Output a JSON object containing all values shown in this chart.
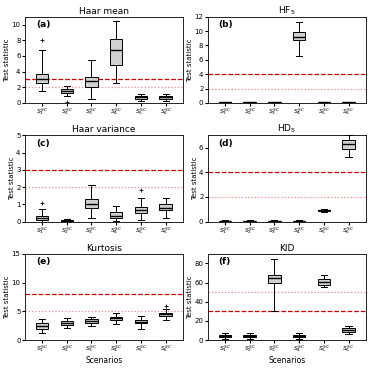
{
  "panels": [
    {
      "label": "(a)",
      "title": "Haar mean",
      "ylabel": "Test statistic",
      "xlabel": "",
      "ylim": [
        0,
        11
      ],
      "yticks": [
        0,
        2,
        4,
        6,
        8,
        10
      ],
      "hline1": 3.0,
      "hline2": 2.0,
      "boxes": [
        {
          "med": 3.1,
          "q1": 2.5,
          "q3": 3.7,
          "whislo": 1.5,
          "whishi": 6.8,
          "fliers_low": [],
          "fliers_high": [
            8.0
          ]
        },
        {
          "med": 1.5,
          "q1": 1.3,
          "q3": 1.8,
          "whislo": 0.9,
          "whishi": 2.2,
          "fliers_low": [
            0.1
          ],
          "fliers_high": []
        },
        {
          "med": 2.8,
          "q1": 2.0,
          "q3": 3.3,
          "whislo": 0.5,
          "whishi": 5.5,
          "fliers_low": [],
          "fliers_high": []
        },
        {
          "med": 6.8,
          "q1": 4.8,
          "q3": 8.2,
          "whislo": 2.5,
          "whishi": 10.5,
          "fliers_low": [],
          "fliers_high": []
        },
        {
          "med": 0.7,
          "q1": 0.5,
          "q3": 0.9,
          "whislo": 0.2,
          "whishi": 1.1,
          "fliers_low": [],
          "fliers_high": []
        },
        {
          "med": 0.7,
          "q1": 0.5,
          "q3": 0.9,
          "whislo": 0.2,
          "whishi": 1.2,
          "fliers_low": [],
          "fliers_high": []
        }
      ]
    },
    {
      "label": "(b)",
      "title": "HF$_5$",
      "ylabel": "Test statistic",
      "xlabel": "",
      "ylim": [
        0,
        12
      ],
      "yticks": [
        0,
        2,
        4,
        6,
        8,
        10,
        12
      ],
      "hline1": 4.0,
      "hline2": 2.0,
      "boxes": [
        {
          "med": 0.08,
          "q1": 0.04,
          "q3": 0.12,
          "whislo": 0.0,
          "whishi": 0.2,
          "fliers_low": [],
          "fliers_high": []
        },
        {
          "med": 0.08,
          "q1": 0.04,
          "q3": 0.12,
          "whislo": 0.0,
          "whishi": 0.2,
          "fliers_low": [],
          "fliers_high": []
        },
        {
          "med": 0.08,
          "q1": 0.04,
          "q3": 0.12,
          "whislo": 0.0,
          "whishi": 0.2,
          "fliers_low": [],
          "fliers_high": []
        },
        {
          "med": 9.2,
          "q1": 8.8,
          "q3": 9.9,
          "whislo": 6.5,
          "whishi": 11.2,
          "fliers_low": [],
          "fliers_high": []
        },
        {
          "med": 0.08,
          "q1": 0.04,
          "q3": 0.12,
          "whislo": 0.0,
          "whishi": 0.2,
          "fliers_low": [],
          "fliers_high": []
        },
        {
          "med": 0.08,
          "q1": 0.04,
          "q3": 0.12,
          "whislo": 0.0,
          "whishi": 0.2,
          "fliers_low": [],
          "fliers_high": []
        }
      ]
    },
    {
      "label": "(c)",
      "title": "Haar variance",
      "ylabel": "Test statistic",
      "xlabel": "",
      "ylim": [
        0,
        5
      ],
      "yticks": [
        0,
        1,
        2,
        3,
        4,
        5
      ],
      "hline1": 3.0,
      "hline2": 2.0,
      "boxes": [
        {
          "med": 0.2,
          "q1": 0.1,
          "q3": 0.35,
          "whislo": 0.0,
          "whishi": 0.7,
          "fliers_low": [],
          "fliers_high": [
            1.1
          ]
        },
        {
          "med": 0.05,
          "q1": 0.02,
          "q3": 0.08,
          "whislo": 0.0,
          "whishi": 0.15,
          "fliers_low": [],
          "fliers_high": []
        },
        {
          "med": 1.0,
          "q1": 0.8,
          "q3": 1.3,
          "whislo": 0.2,
          "whishi": 2.1,
          "fliers_low": [],
          "fliers_high": []
        },
        {
          "med": 0.35,
          "q1": 0.2,
          "q3": 0.55,
          "whislo": 0.05,
          "whishi": 0.9,
          "fliers_low": [],
          "fliers_high": []
        },
        {
          "med": 0.65,
          "q1": 0.5,
          "q3": 0.85,
          "whislo": 0.1,
          "whishi": 1.35,
          "fliers_low": [],
          "fliers_high": [
            1.8
          ]
        },
        {
          "med": 0.8,
          "q1": 0.65,
          "q3": 1.0,
          "whislo": 0.2,
          "whishi": 1.35,
          "fliers_low": [],
          "fliers_high": []
        }
      ]
    },
    {
      "label": "(d)",
      "title": "HD$_5$",
      "ylabel": "Test statistic",
      "xlabel": "",
      "ylim": [
        0,
        7
      ],
      "yticks": [
        0,
        2,
        4,
        6
      ],
      "hline1": 4.0,
      "hline2": 2.0,
      "boxes": [
        {
          "med": 0.04,
          "q1": 0.02,
          "q3": 0.06,
          "whislo": 0.0,
          "whishi": 0.1,
          "fliers_low": [],
          "fliers_high": []
        },
        {
          "med": 0.04,
          "q1": 0.02,
          "q3": 0.06,
          "whislo": 0.0,
          "whishi": 0.1,
          "fliers_low": [],
          "fliers_high": []
        },
        {
          "med": 0.04,
          "q1": 0.02,
          "q3": 0.06,
          "whislo": 0.0,
          "whishi": 0.1,
          "fliers_low": [],
          "fliers_high": []
        },
        {
          "med": 0.04,
          "q1": 0.02,
          "q3": 0.06,
          "whislo": 0.0,
          "whishi": 0.1,
          "fliers_low": [],
          "fliers_high": []
        },
        {
          "med": 0.9,
          "q1": 0.85,
          "q3": 0.95,
          "whislo": 0.75,
          "whishi": 1.0,
          "fliers_low": [],
          "fliers_high": []
        },
        {
          "med": 6.3,
          "q1": 5.9,
          "q3": 6.65,
          "whislo": 5.2,
          "whishi": 7.0,
          "fliers_low": [],
          "fliers_high": []
        }
      ]
    },
    {
      "label": "(e)",
      "title": "Kurtosis",
      "ylabel": "Test statistic",
      "xlabel": "Scenarios",
      "ylim": [
        0,
        15
      ],
      "yticks": [
        0,
        5,
        10,
        15
      ],
      "hline1": 8.0,
      "hline2": 5.0,
      "boxes": [
        {
          "med": 2.5,
          "q1": 2.0,
          "q3": 2.9,
          "whislo": 1.2,
          "whishi": 3.7,
          "fliers_low": [],
          "fliers_high": []
        },
        {
          "med": 3.0,
          "q1": 2.7,
          "q3": 3.3,
          "whislo": 2.1,
          "whishi": 3.9,
          "fliers_low": [],
          "fliers_high": []
        },
        {
          "med": 3.3,
          "q1": 3.0,
          "q3": 3.6,
          "whislo": 2.5,
          "whishi": 4.0,
          "fliers_low": [],
          "fliers_high": []
        },
        {
          "med": 3.8,
          "q1": 3.5,
          "q3": 4.1,
          "whislo": 2.8,
          "whishi": 4.7,
          "fliers_low": [],
          "fliers_high": []
        },
        {
          "med": 3.2,
          "q1": 2.9,
          "q3": 3.5,
          "whislo": 2.0,
          "whishi": 4.2,
          "fliers_low": [],
          "fliers_high": []
        },
        {
          "med": 4.5,
          "q1": 4.2,
          "q3": 4.8,
          "whislo": 3.5,
          "whishi": 5.5,
          "fliers_low": [],
          "fliers_high": [
            6.0
          ]
        }
      ]
    },
    {
      "label": "(f)",
      "title": "KID",
      "ylabel": "Test statistic",
      "xlabel": "Scenarios",
      "ylim": [
        0,
        90
      ],
      "yticks": [
        0,
        20,
        40,
        60,
        80
      ],
      "hline1": 30.0,
      "hline2": 50.0,
      "boxes": [
        {
          "med": 4.0,
          "q1": 3.0,
          "q3": 5.0,
          "whislo": 1.5,
          "whishi": 7.0,
          "fliers_low": [],
          "fliers_high": []
        },
        {
          "med": 4.0,
          "q1": 3.0,
          "q3": 5.0,
          "whislo": 1.5,
          "whishi": 7.0,
          "fliers_low": [],
          "fliers_high": []
        },
        {
          "med": 65.0,
          "q1": 60.0,
          "q3": 68.0,
          "whislo": 30.0,
          "whishi": 85.0,
          "fliers_low": [],
          "fliers_high": []
        },
        {
          "med": 4.0,
          "q1": 3.0,
          "q3": 5.0,
          "whislo": 1.5,
          "whishi": 7.0,
          "fliers_low": [],
          "fliers_high": []
        },
        {
          "med": 61.0,
          "q1": 58.0,
          "q3": 64.0,
          "whislo": 55.0,
          "whishi": 68.0,
          "fliers_low": [],
          "fliers_high": []
        },
        {
          "med": 11.0,
          "q1": 9.0,
          "q3": 13.0,
          "whislo": 6.0,
          "whishi": 15.0,
          "fliers_low": [],
          "fliers_high": []
        }
      ]
    }
  ],
  "xticklabels": [
    "$S_1^{SC}$",
    "$S_2^{SC}$",
    "$S_3^{SC}$",
    "$S_4^{SC}$",
    "$S_5^{SC}$",
    "$S_6^{SC}$"
  ],
  "hline1_color": "#cc0000",
  "hline2_color": "#ff8888",
  "box_facecolor": "#d0d0d0",
  "fig_width": 3.7,
  "fig_height": 3.69,
  "dpi": 100
}
